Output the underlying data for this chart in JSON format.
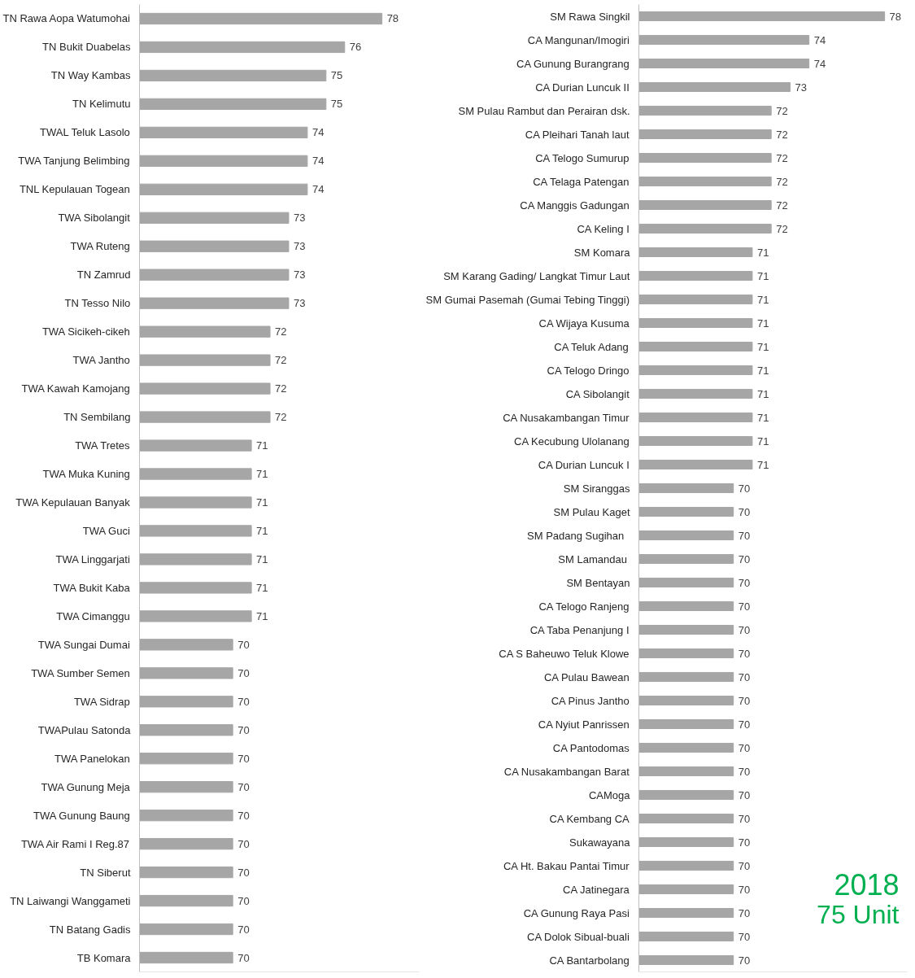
{
  "chart_data": [
    {
      "type": "bar",
      "orientation": "horizontal",
      "data_labels": true,
      "grid": false,
      "xlim": [
        65,
        80
      ],
      "tick_labels": "y",
      "categories": [
        "TN Rawa Aopa Watumohai",
        "TN Bukit Duabelas",
        "TN Way Kambas",
        "TN Kelimutu",
        "TWAL Teluk Lasolo",
        "TWA Tanjung Belimbing",
        "TNL Kepulauan Togean",
        "TWA Sibolangit",
        "TWA Ruteng",
        "TN Zamrud",
        "TN Tesso Nilo",
        "TWA Sicikeh-cikeh",
        "TWA Jantho",
        "TWA Kawah Kamojang",
        "TN Sembilang",
        "TWA Tretes",
        "TWA Muka Kuning",
        "TWA Kepulauan Banyak",
        "TWA Guci",
        "TWA Linggarjati",
        "TWA Bukit Kaba",
        "TWA Cimanggu",
        "TWA Sungai Dumai",
        "TWA Sumber Semen",
        "TWA Sidrap",
        "TWAPulau Satonda",
        "TWA Panelokan",
        "TWA Gunung Meja",
        "TWA Gunung Baung",
        "TWA Air Rami I Reg.87",
        "TN Siberut",
        "TN Laiwangi Wanggameti",
        "TN Batang Gadis",
        "TB Komara"
      ],
      "series": [
        {
          "color": "#a6a6a6",
          "values": [
            78,
            76,
            75,
            75,
            74,
            74,
            74,
            73,
            73,
            73,
            73,
            72,
            72,
            72,
            72,
            71,
            71,
            71,
            71,
            71,
            71,
            71,
            70,
            70,
            70,
            70,
            70,
            70,
            70,
            70,
            70,
            70,
            70,
            70
          ]
        }
      ]
    },
    {
      "type": "bar",
      "orientation": "horizontal",
      "data_labels": true,
      "grid": false,
      "xlim": [
        65,
        79.2
      ],
      "tick_labels": "y",
      "categories": [
        "SM Rawa Singkil",
        "CA Mangunan/Imogiri",
        "CA Gunung Burangrang",
        "CA Durian Luncuk II",
        "SM Pulau Rambut dan Perairan dsk.",
        "CA Pleihari Tanah laut",
        "CA Telogo Sumurup",
        "CA Telaga Patengan",
        "CA Manggis Gadungan",
        "CA Keling I",
        "SM Komara",
        "SM Karang Gading/ Langkat Timur Laut",
        "SM Gumai Pasemah (Gumai Tebing Tinggi)",
        "CA Wijaya Kusuma",
        "CA Teluk Adang",
        "CA Telogo Dringo",
        "CA Sibolangit",
        "CA Nusakambangan Timur",
        "CA Kecubung Ulolanang",
        "CA Durian Luncuk I",
        "SM Siranggas",
        "SM Pulau Kaget",
        "SM  Padang  Sugihan",
        "SM  Lamandau",
        "SM Bentayan",
        "CA Telogo Ranjeng",
        "CA Taba Penanjung I",
        "CA S Baheuwo Teluk Klowe",
        "CA Pulau Bawean",
        "CA Pinus Jantho",
        "CA Nyiut Panrissen",
        "CA Pantodomas",
        "CA Nusakambangan Barat",
        "CAMoga",
        "CA Kembang CA",
        "Sukawayana",
        "CA Ht. Bakau Pantai Timur",
        "CA Jatinegara",
        "CA Gunung Raya Pasi",
        "CA Dolok Sibual-buali",
        "CA Bantarbolang"
      ],
      "series": [
        {
          "color": "#a6a6a6",
          "values": [
            78,
            74,
            74,
            73,
            72,
            72,
            72,
            72,
            72,
            72,
            71,
            71,
            71,
            71,
            71,
            71,
            71,
            71,
            71,
            71,
            70,
            70,
            70,
            70,
            70,
            70,
            70,
            70,
            70,
            70,
            70,
            70,
            70,
            70,
            70,
            70,
            70,
            70,
            70,
            70,
            70
          ]
        }
      ],
      "annotations": [
        "2018",
        "75 Unit"
      ]
    }
  ]
}
